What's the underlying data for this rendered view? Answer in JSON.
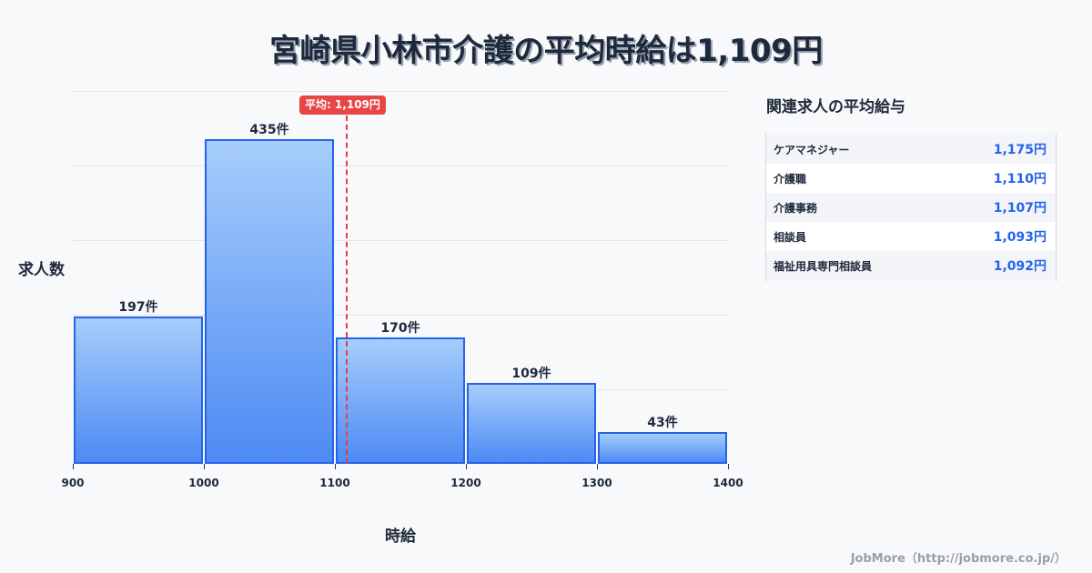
{
  "title": "宮崎県小林市介護の平均時給は1,109円",
  "chart_data": {
    "type": "bar",
    "title": "宮崎県小林市介護の平均時給は1,109円",
    "xlabel": "時給",
    "ylabel": "求人数",
    "categories": [
      "900-1000",
      "1000-1100",
      "1100-1200",
      "1200-1300",
      "1300-1400"
    ],
    "x_ticks": [
      "900",
      "1000",
      "1100",
      "1200",
      "1300",
      "1400"
    ],
    "values": [
      197,
      435,
      170,
      109,
      43
    ],
    "value_labels": [
      "197件",
      "435件",
      "170件",
      "109件",
      "43件"
    ],
    "ylim": [
      0,
      500
    ],
    "grid": true,
    "average": 1109,
    "average_label": "平均: 1,109円",
    "bar_color": "#4d8af3",
    "bar_border_color": "#2563eb",
    "average_line_color": "#e53e3e"
  },
  "side_panel": {
    "title": "関連求人の平均給与",
    "items": [
      {
        "name": "ケアマネジャー",
        "value": "1,175円"
      },
      {
        "name": "介護職",
        "value": "1,110円"
      },
      {
        "name": "介護事務",
        "value": "1,107円"
      },
      {
        "name": "相談員",
        "value": "1,093円"
      },
      {
        "name": "福祉用具専門相談員",
        "value": "1,092円"
      }
    ]
  },
  "footer": "JobMore（http://jobmore.co.jp/）"
}
